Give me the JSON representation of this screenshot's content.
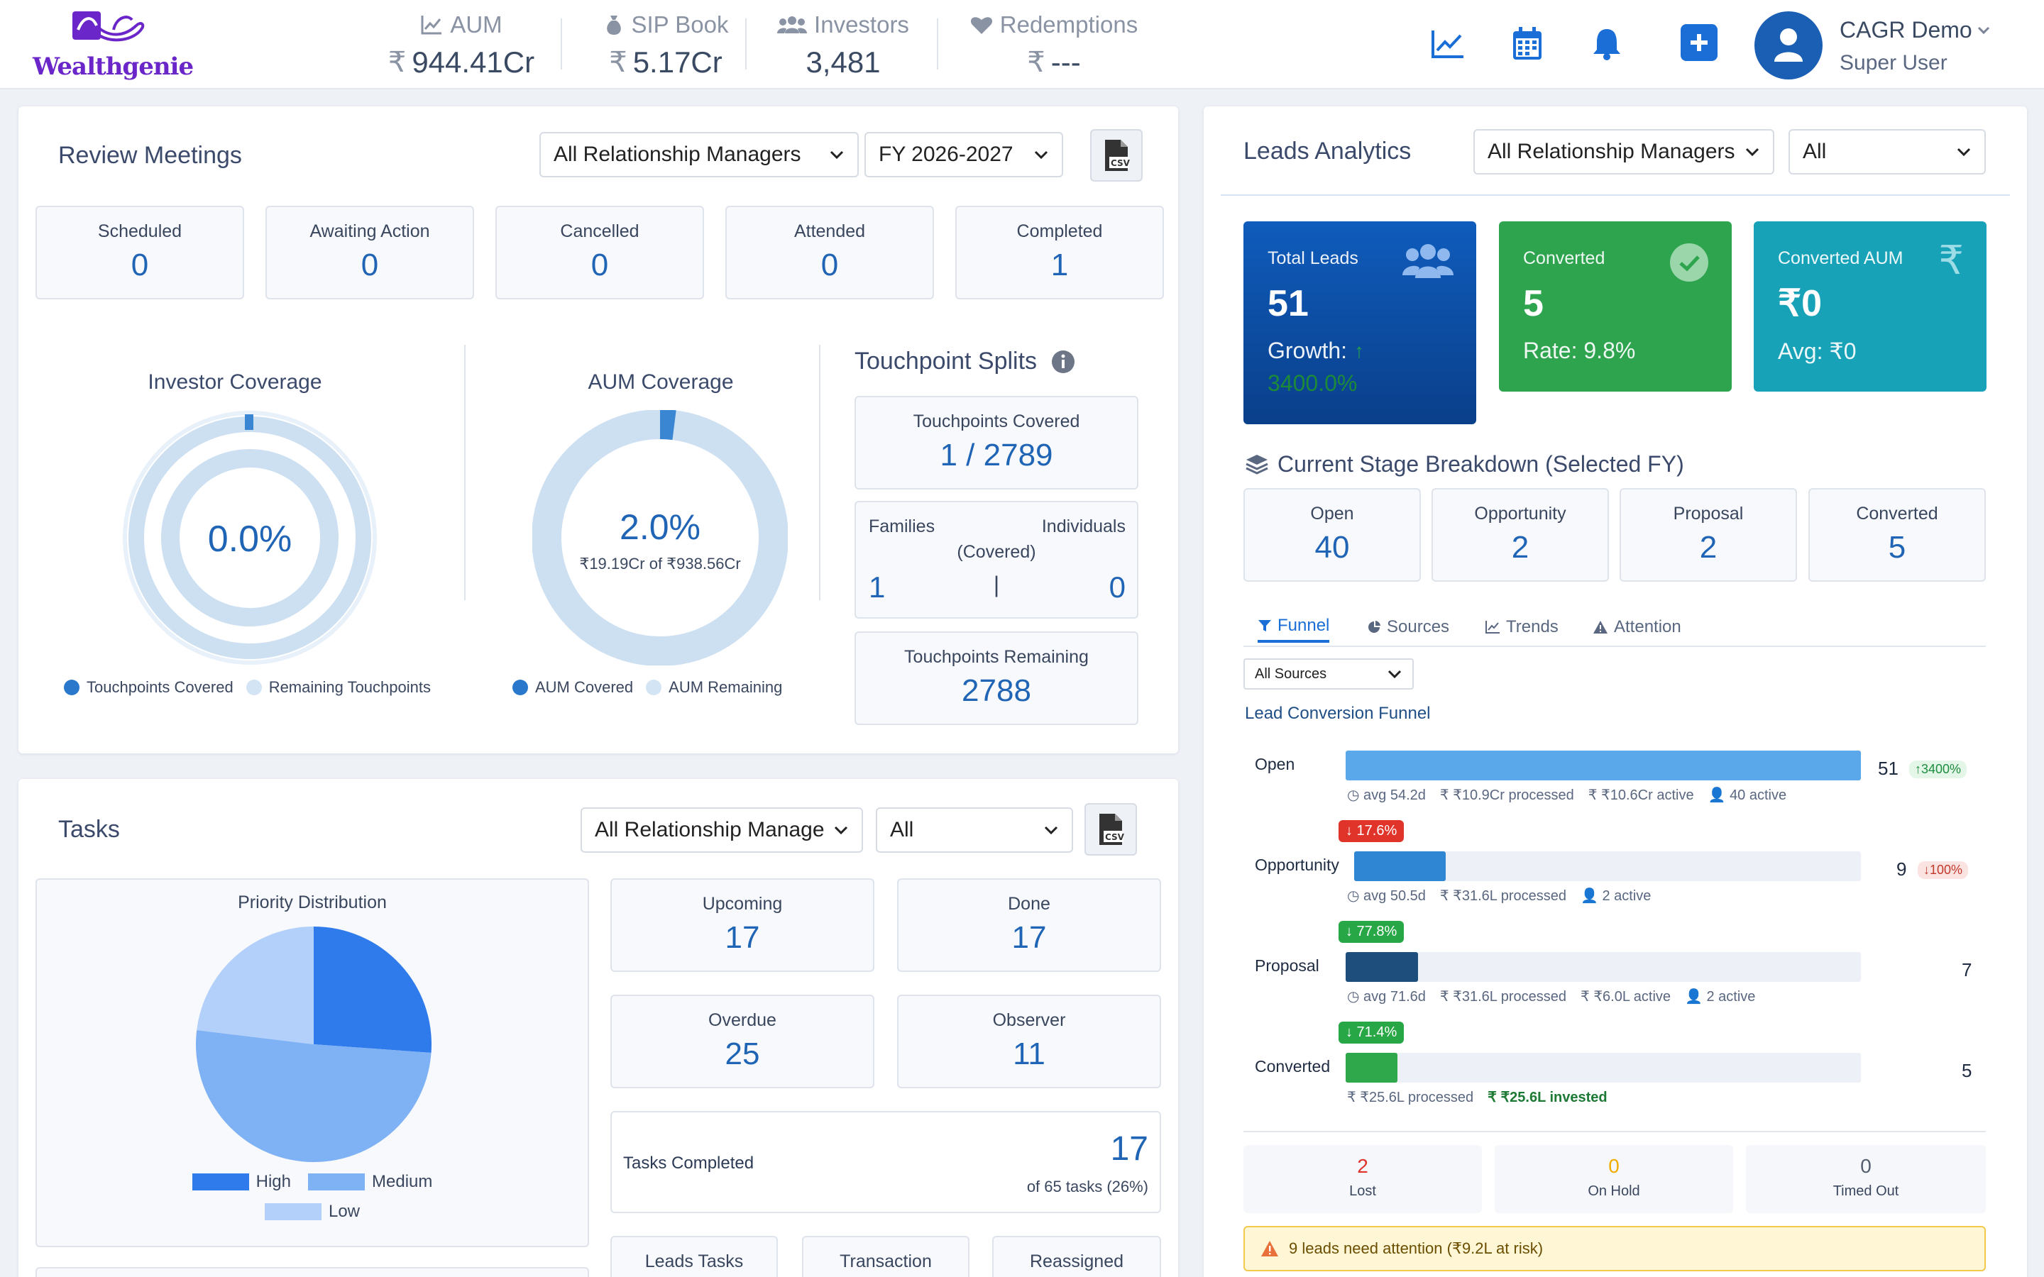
{
  "brand": {
    "name": "Wealthgenie",
    "color": "#6a26c9"
  },
  "header": {
    "kpis": [
      {
        "label": "AUM",
        "value": "944.41Cr",
        "icon": "chart-line-icon"
      },
      {
        "label": "SIP Book",
        "value": "5.17Cr",
        "icon": "money-bag-icon"
      },
      {
        "label": "Investors",
        "value": "3,481",
        "icon": "users-icon"
      },
      {
        "label": "Redemptions",
        "value": "---",
        "icon": "heart-icon"
      }
    ],
    "currency_symbol": "₹",
    "user": {
      "name": "CAGR Demo",
      "role": "Super User"
    }
  },
  "review": {
    "title": "Review Meetings",
    "rm_filter": "All Relationship Managers",
    "fy_filter": "FY 2026-2027",
    "stats": [
      {
        "label": "Scheduled",
        "value": "0"
      },
      {
        "label": "Awaiting Action",
        "value": "0"
      },
      {
        "label": "Cancelled",
        "value": "0"
      },
      {
        "label": "Attended",
        "value": "0"
      },
      {
        "label": "Completed",
        "value": "1"
      }
    ],
    "investor_coverage": {
      "title": "Investor Coverage",
      "value": "0.0%",
      "fraction": 0.0,
      "legend_covered": "Touchpoints Covered",
      "legend_remaining": "Remaining Touchpoints"
    },
    "aum_coverage": {
      "title": "AUM Coverage",
      "value": "2.0%",
      "fraction": 0.02,
      "sub": "₹19.19Cr of ₹938.56Cr",
      "legend_covered": "AUM Covered",
      "legend_remaining": "AUM Remaining"
    },
    "touchpoints": {
      "title": "Touchpoint Splits",
      "covered_label": "Touchpoints Covered",
      "covered_value": "1 / 2789",
      "families_label": "Families",
      "individuals_label": "Individuals",
      "covered_sub": "(Covered)",
      "families_value": "1",
      "divider": "|",
      "individuals_value": "0",
      "remaining_label": "Touchpoints Remaining",
      "remaining_value": "2788"
    }
  },
  "tasks": {
    "title": "Tasks",
    "rm_filter": "All Relationship Manage",
    "status_filter": "All",
    "priority": {
      "title": "Priority Distribution",
      "slices": [
        {
          "name": "High",
          "value": 17,
          "color": "#2f7bec"
        },
        {
          "name": "Medium",
          "value": 33,
          "color": "#7fb1f5"
        },
        {
          "name": "Low",
          "value": 15,
          "color": "#b3d0fa"
        }
      ]
    },
    "stats": [
      {
        "label": "Upcoming",
        "value": "17"
      },
      {
        "label": "Done",
        "value": "17"
      },
      {
        "label": "Overdue",
        "value": "25"
      },
      {
        "label": "Observer",
        "value": "11"
      }
    ],
    "completed": {
      "label": "Tasks Completed",
      "value": "17",
      "sub": "of 65 tasks (26%)"
    },
    "bottom_tabs": [
      "Leads Tasks",
      "Transaction",
      "Reassigned"
    ]
  },
  "leads": {
    "title": "Leads Analytics",
    "rm_filter": "All Relationship Managers",
    "scope_filter": "All",
    "cards": {
      "total": {
        "label": "Total Leads",
        "value": "51",
        "sub": "Growth:",
        "growth": "3400.0%"
      },
      "converted": {
        "label": "Converted",
        "value": "5",
        "sub": "Rate: 9.8%"
      },
      "aum": {
        "label": "Converted AUM",
        "value": "₹0",
        "sub": "Avg: ₹0"
      }
    },
    "stage_title": "Current Stage Breakdown (Selected FY)",
    "stages": [
      {
        "label": "Open",
        "value": "40"
      },
      {
        "label": "Opportunity",
        "value": "2"
      },
      {
        "label": "Proposal",
        "value": "2"
      },
      {
        "label": "Converted",
        "value": "5"
      }
    ],
    "tabs": [
      "Funnel",
      "Sources",
      "Trends",
      "Attention"
    ],
    "source_filter": "All Sources",
    "funnel_title": "Lead Conversion Funnel",
    "funnel": [
      {
        "name": "Open",
        "count": "51",
        "fraction": 1.0,
        "color": "#5aa7ea",
        "badge": "↑3400%",
        "badge_type": "up",
        "meta": [
          "avg 54.2d",
          "₹10.9Cr processed",
          "₹10.6Cr active",
          "40 active"
        ]
      },
      {
        "name": "Opportunity",
        "count": "9",
        "fraction": 0.18,
        "color": "#2f86d3",
        "drop": "↓ 17.6%",
        "drop_color": "#e0342b",
        "badge": "↓100%",
        "badge_type": "down",
        "meta": [
          "avg 50.5d",
          "₹31.6L processed",
          "2 active"
        ]
      },
      {
        "name": "Proposal",
        "count": "7",
        "fraction": 0.14,
        "color": "#1e4f7c",
        "drop": "↓ 77.8%",
        "drop_color": "#27a745",
        "meta": [
          "avg 71.6d",
          "₹31.6L processed",
          "₹6.0L active",
          "2 active"
        ]
      },
      {
        "name": "Converted",
        "count": "5",
        "fraction": 0.1,
        "color": "#2ea84a",
        "drop": "↓ 71.4%",
        "drop_color": "#27a745",
        "meta": [
          "₹25.6L processed"
        ],
        "invested": "₹25.6L invested"
      }
    ],
    "outcomes": [
      {
        "label": "Lost",
        "value": "2",
        "color": "#e0342b"
      },
      {
        "label": "On Hold",
        "value": "0",
        "color": "#f0ad00"
      },
      {
        "label": "Timed Out",
        "value": "0",
        "color": "#555e6e"
      }
    ],
    "alert": "9 leads need attention (₹9.2L at risk)"
  },
  "colors": {
    "primary": "#1a6ed6",
    "value_blue": "#1f64b5",
    "coverage_light": "#cde0f2",
    "coverage_dark": "#3a86d2",
    "card_blue": "#0e57b4",
    "card_green": "#2ea44f",
    "card_teal": "#17a2b8"
  }
}
